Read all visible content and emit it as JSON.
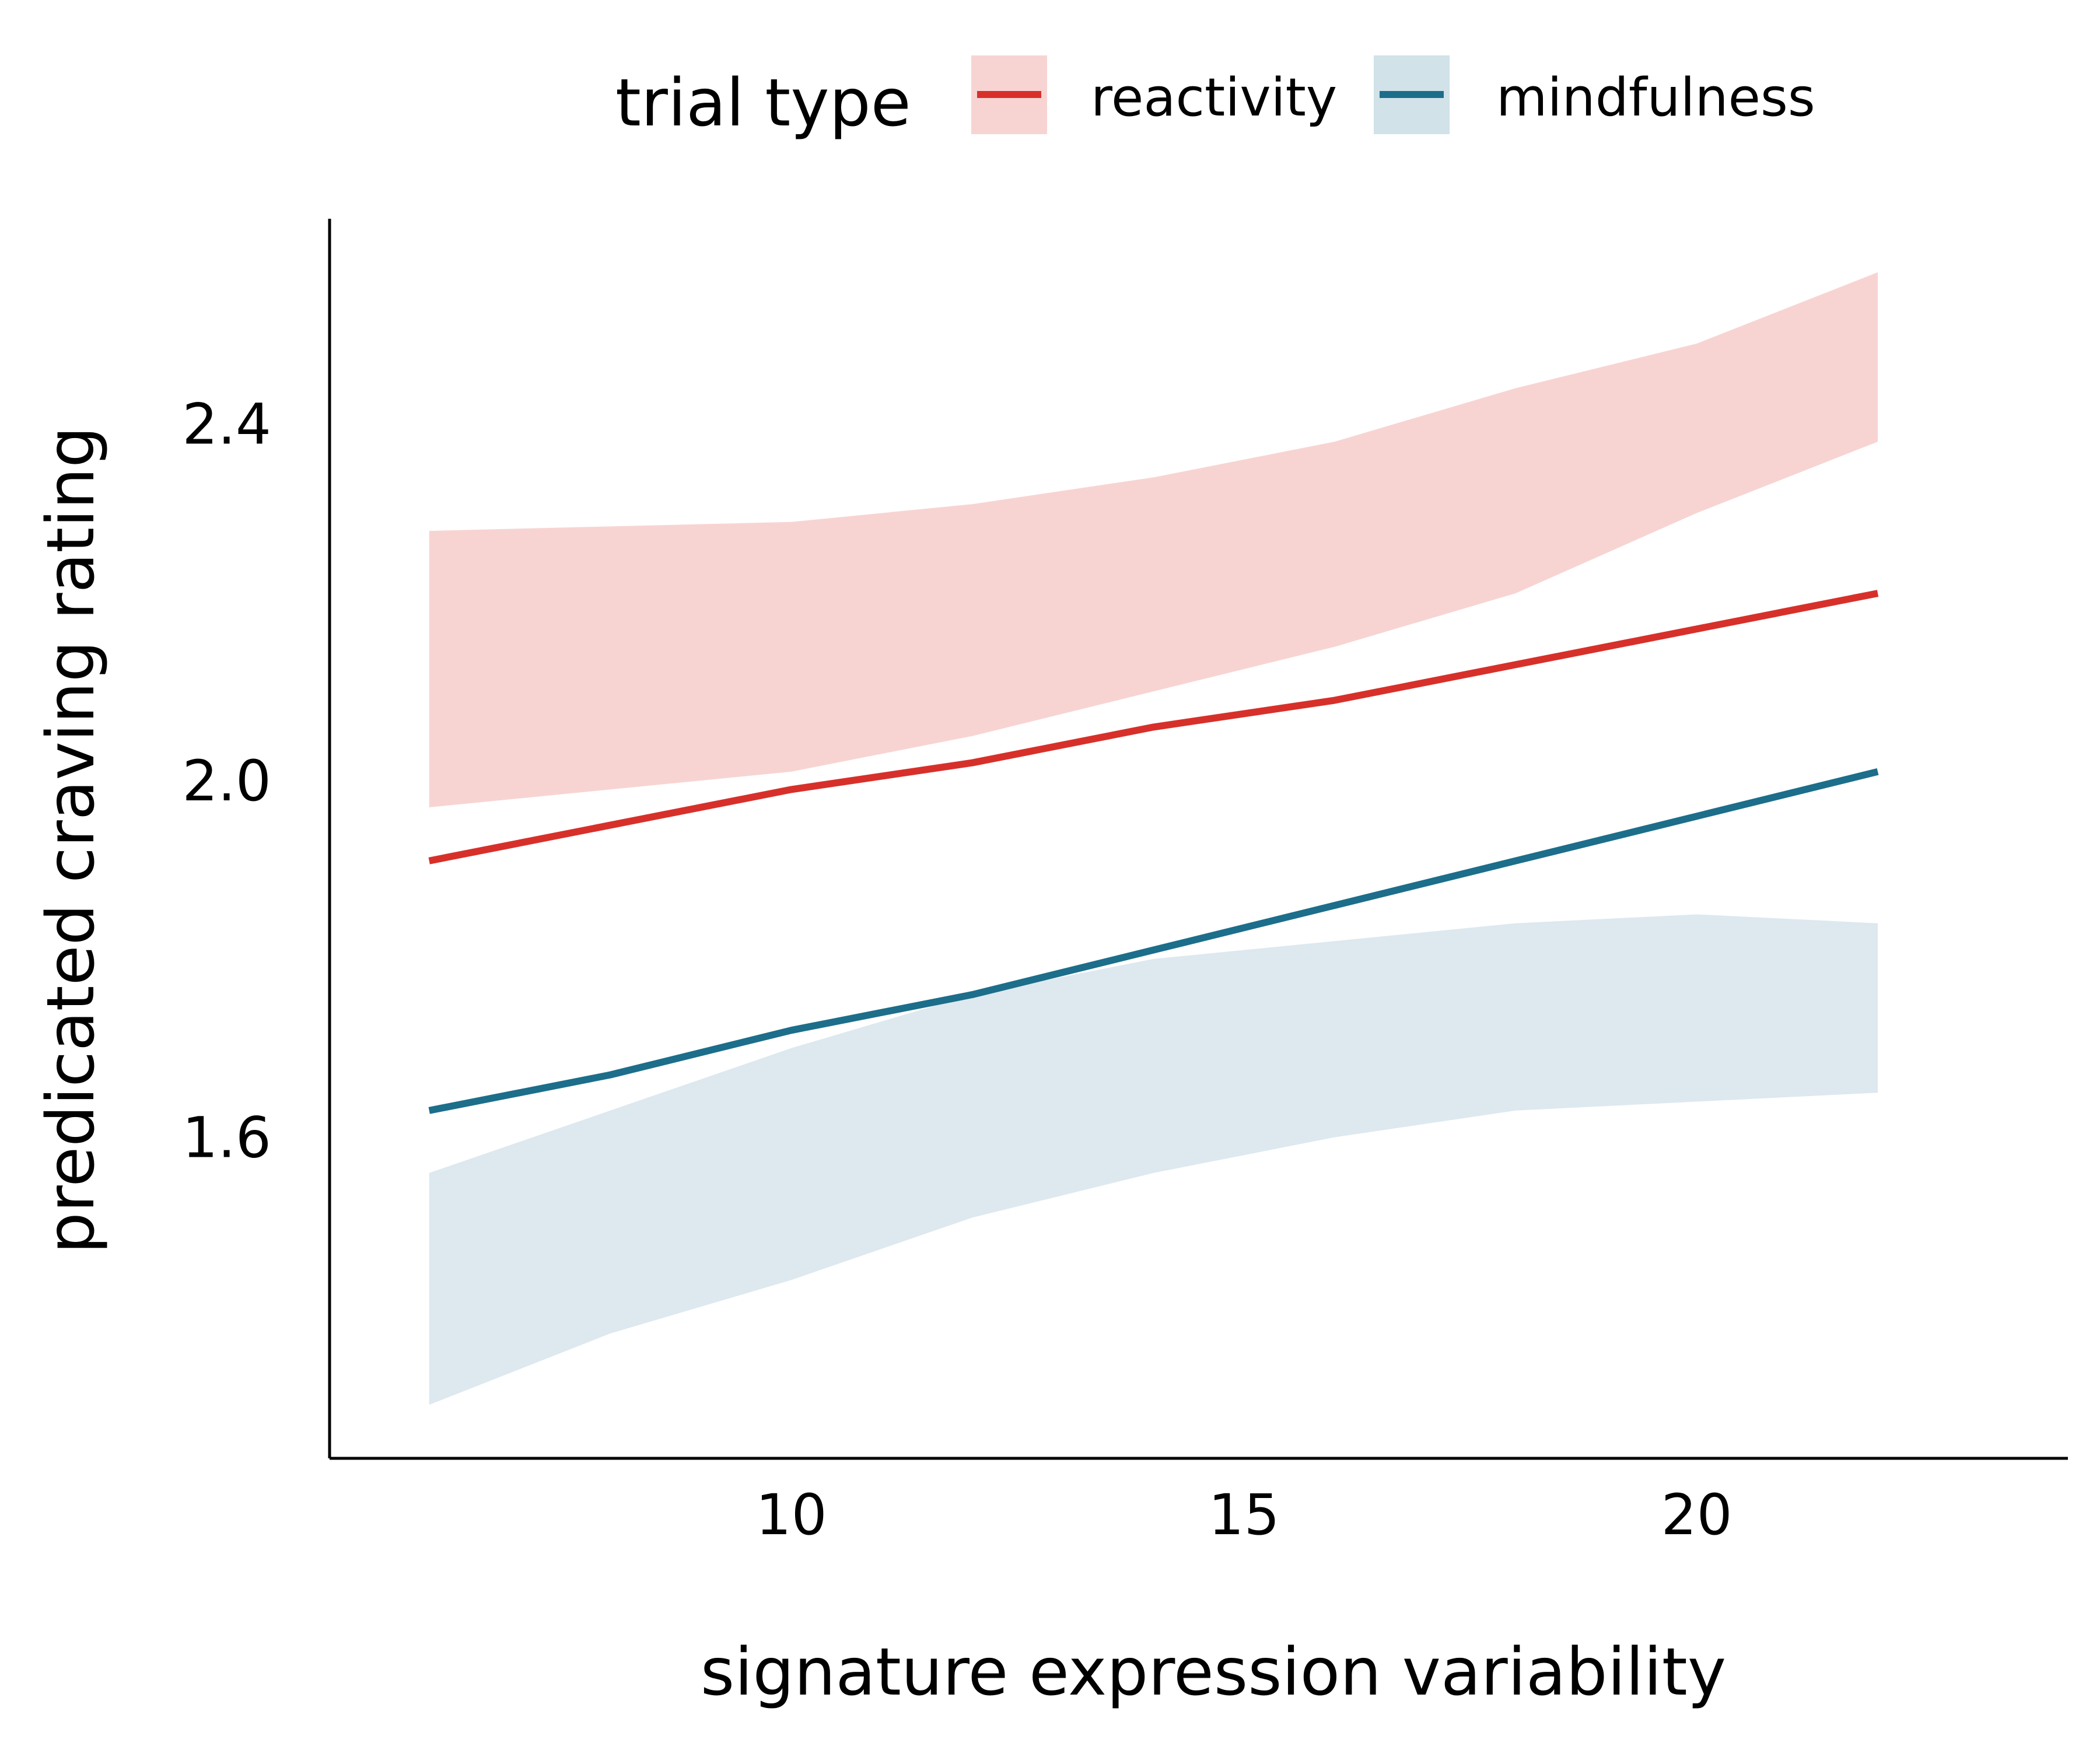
{
  "chart_data": {
    "type": "line",
    "title": "",
    "xlabel": "signature expression variability",
    "ylabel": "predicated craving rating",
    "xlim": [
      4.9,
      24.1
    ],
    "ylim": [
      1.24,
      2.63
    ],
    "x_ticks": [
      10,
      15,
      20
    ],
    "x_tick_labels": [
      "10",
      "15",
      "20"
    ],
    "y_ticks": [
      1.6,
      2.0,
      2.4
    ],
    "y_tick_labels": [
      "1.6",
      "2.0",
      "2.4"
    ],
    "grid": false,
    "legend": {
      "title": "trial type",
      "position": "top"
    },
    "series": [
      {
        "name": "reactivity",
        "color": "#d7302a",
        "band_color": "#f7d4d2",
        "x": [
          6,
          8,
          10,
          12,
          14,
          16,
          18,
          20,
          22
        ],
        "y": [
          1.91,
          1.95,
          1.99,
          2.02,
          2.06,
          2.09,
          2.13,
          2.17,
          2.21
        ],
        "lower": [
          1.97,
          1.99,
          2.01,
          2.05,
          2.1,
          2.15,
          2.21,
          2.3,
          2.38
        ],
        "upper": [
          2.28,
          2.285,
          2.29,
          2.31,
          2.34,
          2.38,
          2.44,
          2.49,
          2.57
        ]
      },
      {
        "name": "mindfulness",
        "color": "#1c6e8a",
        "band_color": "#d1e2e9",
        "x": [
          6,
          8,
          10,
          12,
          14,
          16,
          18,
          20,
          22
        ],
        "y": [
          1.63,
          1.67,
          1.72,
          1.76,
          1.81,
          1.86,
          1.91,
          1.96,
          2.01
        ],
        "lower": [
          1.3,
          1.38,
          1.44,
          1.51,
          1.56,
          1.6,
          1.63,
          1.64,
          1.65
        ],
        "upper": [
          1.56,
          1.63,
          1.7,
          1.76,
          1.8,
          1.82,
          1.84,
          1.85,
          1.84
        ]
      }
    ]
  }
}
